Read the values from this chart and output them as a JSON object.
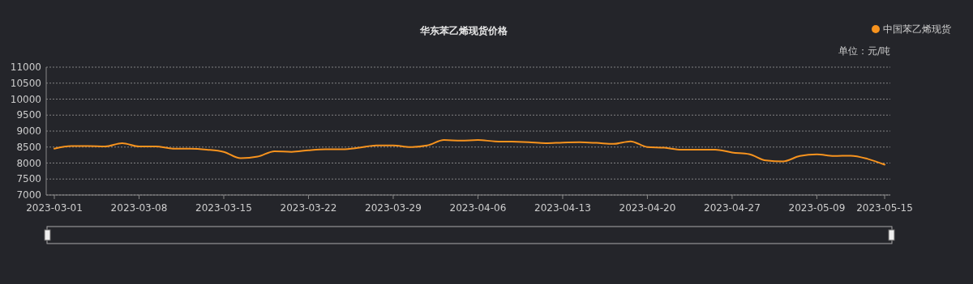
{
  "chart_data": {
    "type": "line",
    "title": "华东苯乙烯现货价格",
    "ylabel": "单位：元/吨",
    "categories": [
      "2023-03-01",
      null,
      null,
      null,
      null,
      "2023-03-08",
      null,
      null,
      null,
      null,
      "2023-03-15",
      null,
      null,
      null,
      null,
      "2023-03-22",
      null,
      null,
      null,
      null,
      "2023-03-29",
      null,
      null,
      null,
      null,
      "2023-04-06",
      null,
      null,
      null,
      null,
      "2023-04-13",
      null,
      null,
      null,
      null,
      "2023-04-20",
      null,
      null,
      null,
      null,
      "2023-04-27",
      null,
      null,
      null,
      null,
      "2023-05-09",
      null,
      null,
      null,
      "2023-05-15"
    ],
    "series": [
      {
        "name": "中国苯乙烯现货",
        "color": "#f7931e",
        "values": [
          8450,
          8530,
          8530,
          8520,
          8620,
          8520,
          8520,
          8450,
          8450,
          8420,
          8350,
          8150,
          8200,
          8370,
          8350,
          8400,
          8430,
          8430,
          8480,
          8550,
          8550,
          8500,
          8550,
          8720,
          8700,
          8720,
          8680,
          8670,
          8650,
          8620,
          8640,
          8650,
          8630,
          8600,
          8680,
          8500,
          8480,
          8420,
          8420,
          8420,
          8330,
          8280,
          8080,
          8050,
          8220,
          8270,
          8220,
          8230,
          8130,
          7950
        ]
      }
    ],
    "ylim": [
      7000,
      11000
    ],
    "yticks": [
      7000,
      7500,
      8000,
      8500,
      9000,
      9500,
      10000,
      10500,
      11000
    ],
    "grid": "y",
    "legend": "top right",
    "marker": "none",
    "line_style": "solid"
  }
}
